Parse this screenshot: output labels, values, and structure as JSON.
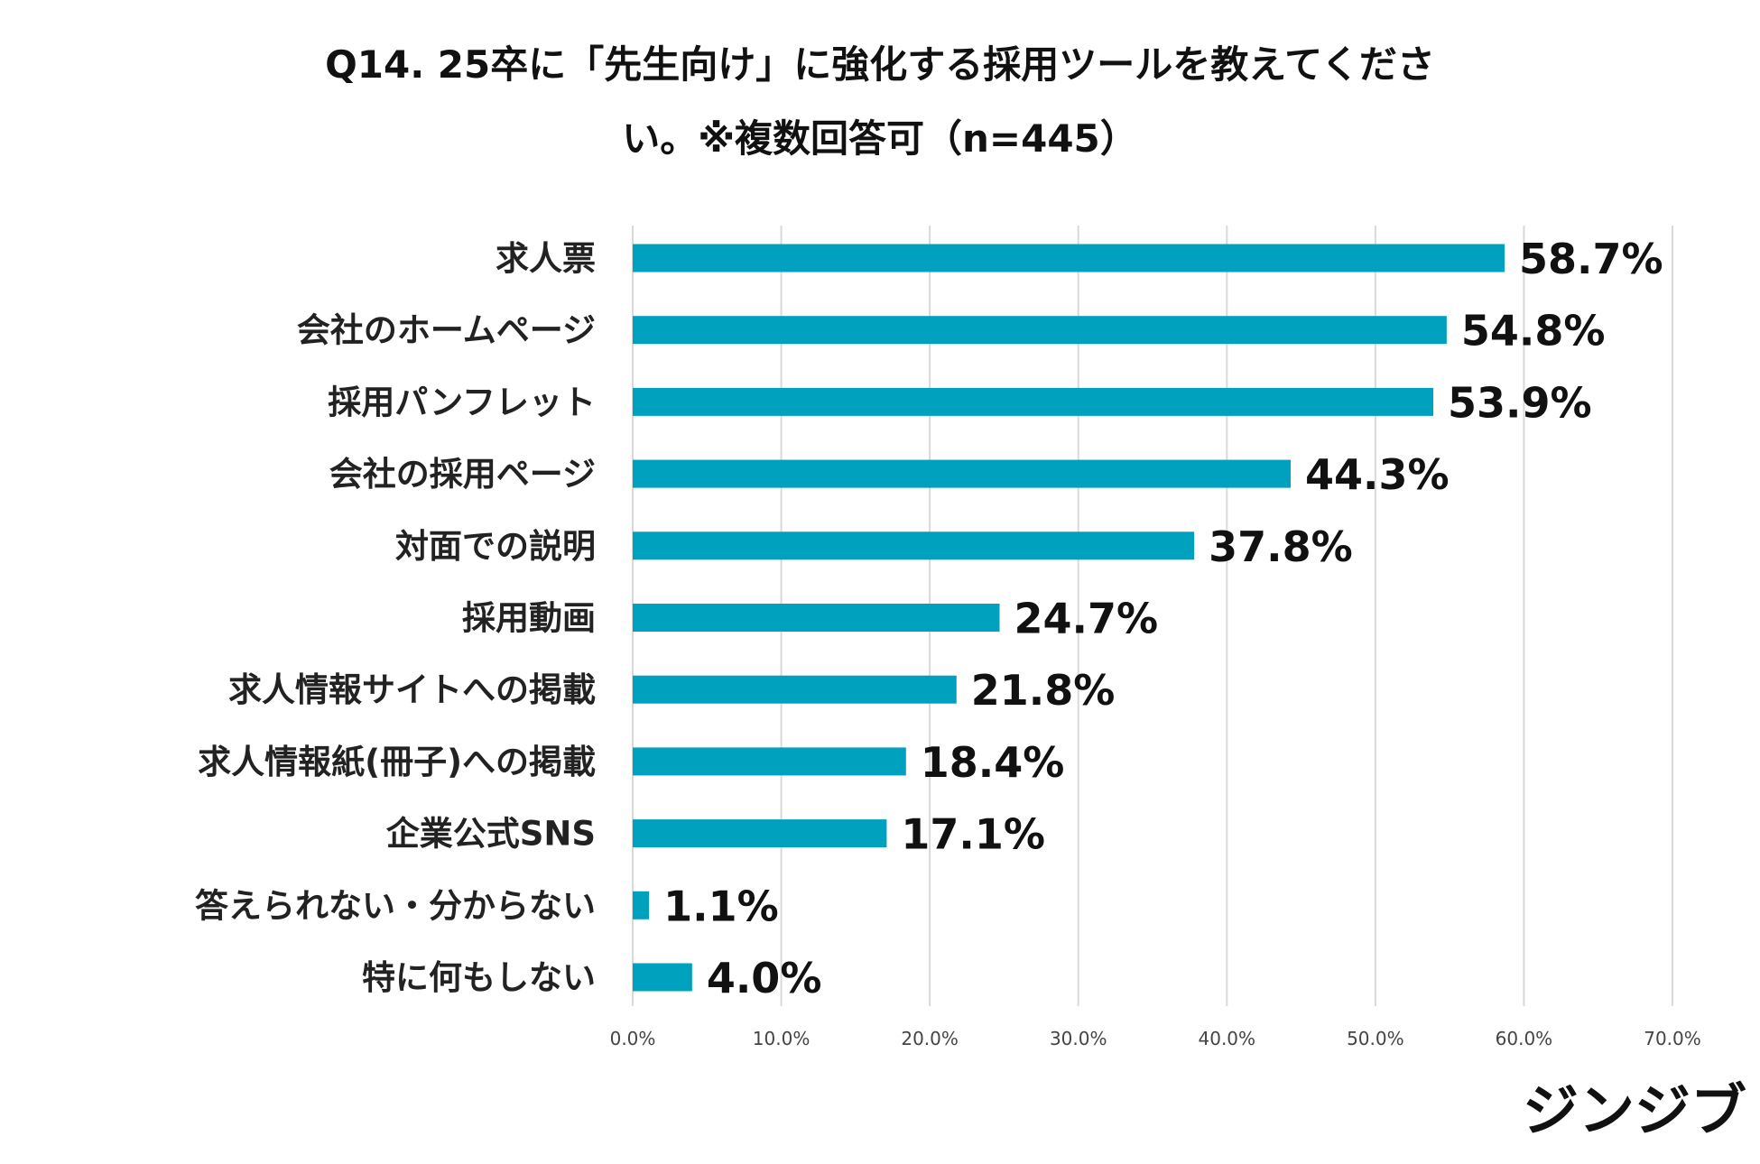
{
  "title_line1": "Q14. 25卒に「先生向け」に強化する採用ツールを教えてくださ",
  "title_line2": "い。※複数回答可（n=445）",
  "logo_text": "ジンジブ",
  "colors": {
    "bar": "#00a0bf",
    "grid": "#d9d9d9"
  },
  "chart_data": {
    "type": "bar",
    "orientation": "horizontal",
    "title": "Q14. 25卒に「先生向け」に強化する採用ツールを教えてください。※複数回答可（n=445）",
    "categories": [
      "求人票",
      "会社のホームページ",
      "採用パンフレット",
      "会社の採用ページ",
      "対面での説明",
      "採用動画",
      "求人情報サイトへの掲載",
      "求人情報紙(冊子)への掲載",
      "企業公式SNS",
      "答えられない・分からない",
      "特に何もしない"
    ],
    "values": [
      58.7,
      54.8,
      53.9,
      44.3,
      37.8,
      24.7,
      21.8,
      18.4,
      17.1,
      1.1,
      4.0
    ],
    "value_labels": [
      "58.7%",
      "54.8%",
      "53.9%",
      "44.3%",
      "37.8%",
      "24.7%",
      "21.8%",
      "18.4%",
      "17.1%",
      "1.1%",
      "4.0%"
    ],
    "xlim": [
      0,
      70
    ],
    "xticks": [
      0,
      10,
      20,
      30,
      40,
      50,
      60,
      70
    ],
    "xtick_labels": [
      "0.0%",
      "10.0%",
      "20.0%",
      "30.0%",
      "40.0%",
      "50.0%",
      "60.0%",
      "70.0%"
    ],
    "grid": true,
    "legend": "none"
  }
}
